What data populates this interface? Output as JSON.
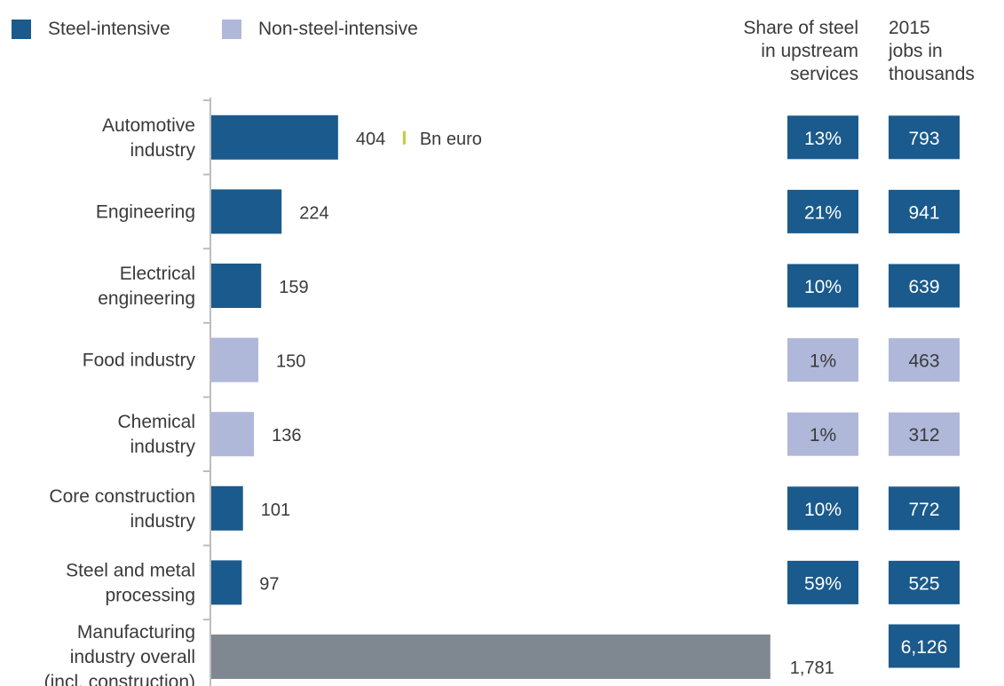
{
  "chart_data": {
    "type": "bar",
    "orientation": "horizontal",
    "legend": [
      {
        "label": "Steel-intensive",
        "color": "#1b5a8c"
      },
      {
        "label": "Non-steel-intensive",
        "color": "#b0b8da"
      }
    ],
    "column_headers": {
      "share": "Share of steel\nin upstream\nservices",
      "jobs": "2015\njobs in\nthousands"
    },
    "unit_note": "Bn euro",
    "rows": [
      {
        "label": "Automotive\nindustry",
        "value": 404,
        "value_label": "404",
        "group": "Steel-intensive",
        "share": "13%",
        "jobs": "793"
      },
      {
        "label": "Engineering",
        "value": 224,
        "value_label": "224",
        "group": "Steel-intensive",
        "share": "21%",
        "jobs": "941"
      },
      {
        "label": "Electrical\nengineering",
        "value": 159,
        "value_label": "159",
        "group": "Steel-intensive",
        "share": "10%",
        "jobs": "639"
      },
      {
        "label": "Food industry",
        "value": 150,
        "value_label": "150",
        "group": "Non-steel-intensive",
        "share": "1%",
        "jobs": "463"
      },
      {
        "label": "Chemical\nindustry",
        "value": 136,
        "value_label": "136",
        "group": "Non-steel-intensive",
        "share": "1%",
        "jobs": "312"
      },
      {
        "label": "Core construction\nindustry",
        "value": 101,
        "value_label": "101",
        "group": "Steel-intensive",
        "share": "10%",
        "jobs": "772"
      },
      {
        "label": "Steel and metal\nprocessing",
        "value": 97,
        "value_label": "97",
        "group": "Steel-intensive",
        "share": "59%",
        "jobs": "525"
      },
      {
        "label": "Manufacturing\nindustry overall\n(incl. construction)",
        "value": 1781,
        "value_label": "1,781",
        "group": "overall",
        "share": "",
        "jobs": "6,126"
      }
    ],
    "colors": {
      "steel": "#1b5a8c",
      "non_steel": "#b0b8da",
      "overall": "#7f8790",
      "unit_marker": "#c5c93a",
      "axis": "#bdbdbd",
      "text_light": "#ffffff",
      "text_dark": "#3a3a3a"
    }
  }
}
